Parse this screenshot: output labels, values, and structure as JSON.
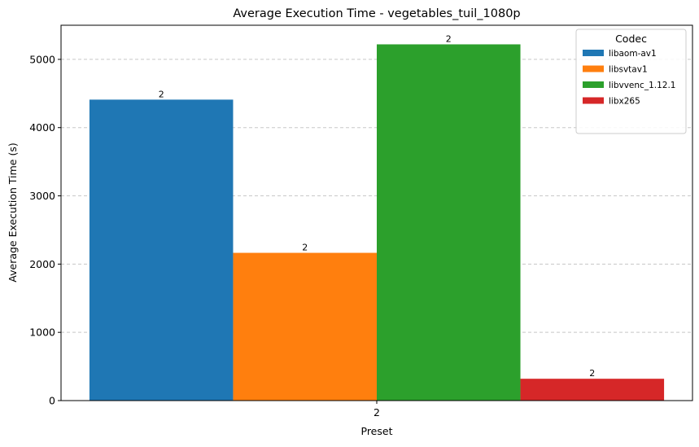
{
  "chart_data": {
    "type": "bar",
    "title": "Average Execution Time - vegetables_tuil_1080p",
    "xlabel": "Preset",
    "ylabel": "Average Execution Time (s)",
    "categories": [
      "2"
    ],
    "ylim": [
      0,
      5500
    ],
    "yticks": [
      0,
      1000,
      2000,
      3000,
      4000,
      5000
    ],
    "grid": "y-dashed",
    "legend": {
      "title": "Codec",
      "placement": "top-right"
    },
    "series": [
      {
        "name": "libaom-av1",
        "values": [
          4410
        ],
        "labels": [
          "2"
        ],
        "color": "#1f77b4"
      },
      {
        "name": "libsvtav1",
        "values": [
          2165
        ],
        "labels": [
          "2"
        ],
        "color": "#ff7f0e"
      },
      {
        "name": "libvvenc_1.12.1",
        "values": [
          5220
        ],
        "labels": [
          "2"
        ],
        "color": "#2ca02c"
      },
      {
        "name": "libx265",
        "values": [
          320
        ],
        "labels": [
          "2"
        ],
        "color": "#d62728"
      }
    ]
  }
}
